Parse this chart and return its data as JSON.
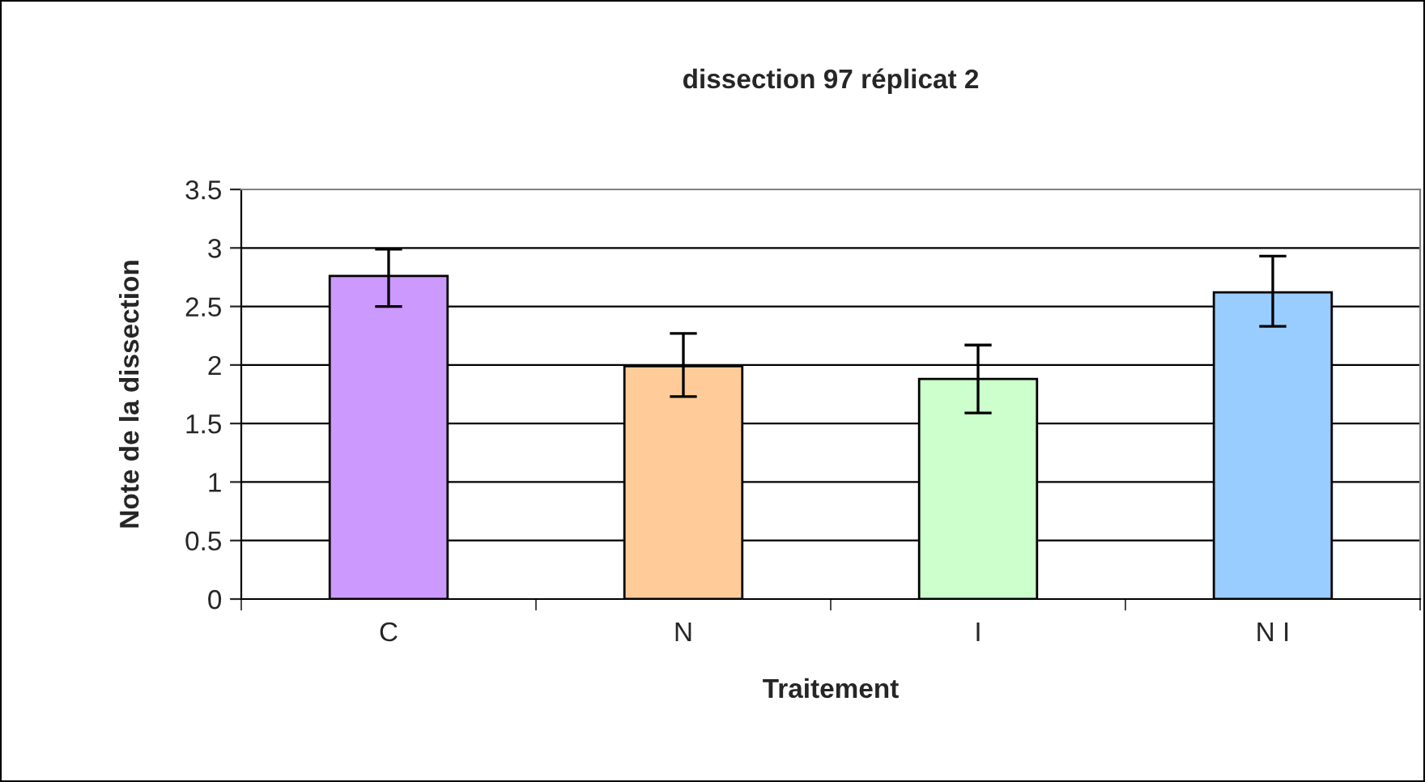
{
  "chart_data": {
    "type": "bar",
    "title": "dissection 97 réplicat 2",
    "xlabel": "Traitement",
    "ylabel": "Note de la dissection",
    "categories": [
      "C",
      "N",
      "I",
      "N I"
    ],
    "values": [
      2.76,
      1.99,
      1.88,
      2.62
    ],
    "colors": [
      "#cc99ff",
      "#ffcc99",
      "#ccffcc",
      "#99ccff"
    ],
    "errors": [
      [
        2.5,
        2.99
      ],
      [
        1.73,
        2.27
      ],
      [
        1.59,
        2.17
      ],
      [
        2.33,
        2.93
      ]
    ],
    "ylim": [
      0,
      3.5
    ],
    "yticks": [
      0,
      0.5,
      1,
      1.5,
      2,
      2.5,
      3,
      3.5
    ],
    "grid": "y"
  }
}
